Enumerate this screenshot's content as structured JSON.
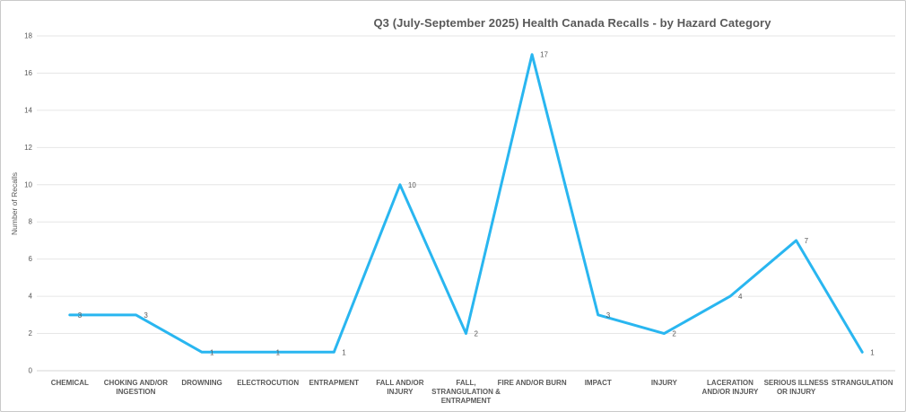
{
  "frame": {
    "background": "#ffffff",
    "border_color": "#c9c9c9"
  },
  "chart_data": {
    "type": "line",
    "title": "Q3 (July-September 2025) Health Canada Recalls - by Hazard Category",
    "xlabel": "",
    "ylabel": "Number of Recalls",
    "categories": [
      "CHEMICAL",
      "CHOKING AND/OR INGESTION",
      "DROWNING",
      "ELECTROCUTION",
      "ENTRAPMENT",
      "FALL AND/OR INJURY",
      "FALL, STRANGULATION & ENTRAPMENT",
      "FIRE AND/OR BURN",
      "IMPACT",
      "INJURY",
      "LACERATION AND/OR INJURY",
      "SERIOUS ILLNESS OR INJURY",
      "STRANGULATION"
    ],
    "category_label_lines": [
      [
        "CHEMICAL"
      ],
      [
        "CHOKING AND/OR",
        "INGESTION"
      ],
      [
        "DROWNING"
      ],
      [
        "ELECTROCUTION"
      ],
      [
        "ENTRAPMENT"
      ],
      [
        "FALL AND/OR",
        "INJURY"
      ],
      [
        "FALL,",
        "STRANGULATION &",
        "ENTRAPMENT"
      ],
      [
        "FIRE AND/OR BURN"
      ],
      [
        "IMPACT"
      ],
      [
        "INJURY"
      ],
      [
        "LACERATION",
        "AND/OR INJURY"
      ],
      [
        "SERIOUS ILLNESS",
        "OR INJURY"
      ],
      [
        "STRANGULATION"
      ]
    ],
    "values": [
      3,
      3,
      1,
      1,
      1,
      10,
      2,
      17,
      3,
      2,
      4,
      7,
      1
    ],
    "ylim": [
      0,
      18
    ],
    "ytick_step": 2,
    "yticks": [
      0,
      2,
      4,
      6,
      8,
      10,
      12,
      14,
      16,
      18
    ],
    "grid": true,
    "legend": false,
    "show_data_labels": true,
    "colors": {
      "line": "#29b6f0",
      "grid": "#e6e6e6",
      "axis_line": "#d4d4d4",
      "text": "#595959"
    }
  }
}
